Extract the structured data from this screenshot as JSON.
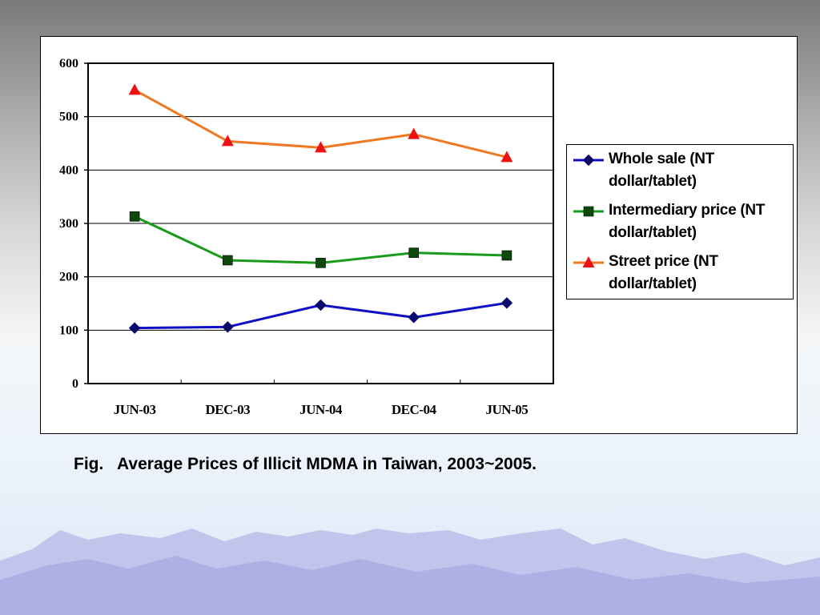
{
  "caption": "Fig.   Average Prices of Illicit MDMA in Taiwan, 2003~2005.",
  "chart_data": {
    "type": "line",
    "categories": [
      "JUN-03",
      "DEC-03",
      "JUN-04",
      "DEC-04",
      "JUN-05"
    ],
    "ylim": [
      0,
      600
    ],
    "yticks": [
      "0",
      "100",
      "200",
      "300",
      "400",
      "500",
      "600"
    ],
    "grid": true,
    "legend_position": "right",
    "series": [
      {
        "name": "Whole sale (NT dollar/tablet)",
        "values": [
          104,
          106,
          147,
          124,
          151
        ],
        "color": "#1010c8",
        "marker": "diamond",
        "marker_color": "#0a0a6e"
      },
      {
        "name": "Intermediary price (NT dollar/tablet)",
        "values": [
          313,
          231,
          226,
          245,
          240
        ],
        "color": "#1a9a1a",
        "marker": "square",
        "marker_color": "#0b4a0b"
      },
      {
        "name": "Street price (NT dollar/tablet)",
        "values": [
          550,
          454,
          442,
          467,
          424
        ],
        "color": "#f07820",
        "marker": "triangle",
        "marker_color": "#ee1111"
      }
    ]
  }
}
